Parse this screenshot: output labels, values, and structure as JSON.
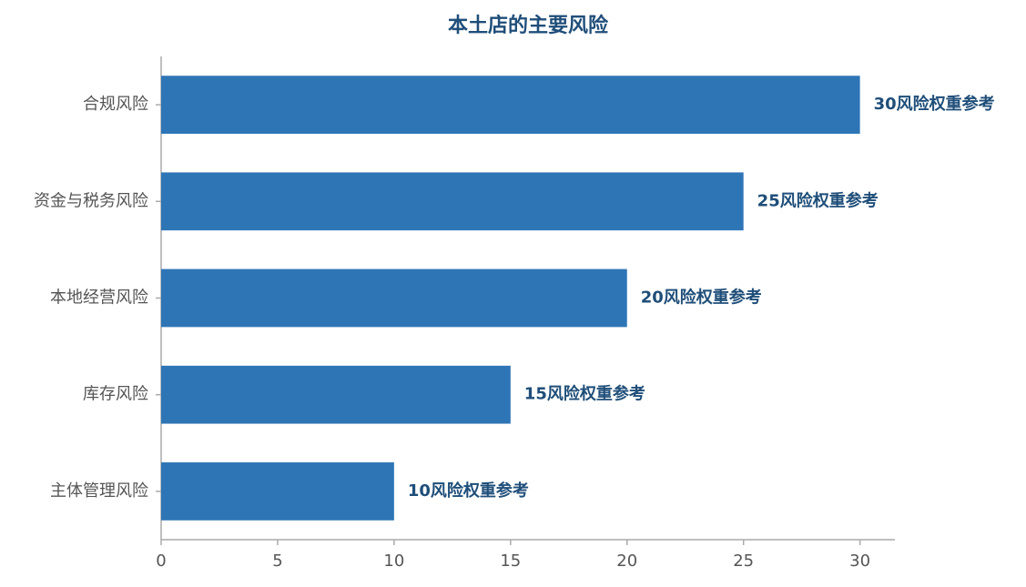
{
  "chart_data": {
    "type": "hbar",
    "title": "本土店的主要风险",
    "categories": [
      "合规风险",
      "资金与税务风险",
      "本地经营风险",
      "库存风险",
      "主体管理风险"
    ],
    "values": [
      30,
      25,
      20,
      15,
      10
    ],
    "value_labels": [
      "30风险权重参考",
      "25风险权重参考",
      "20风险权重参考",
      "15风险权重参考",
      "10风险权重参考"
    ],
    "color": "#2e75b6",
    "xlim": [
      0,
      31.5
    ],
    "xticks": [
      0,
      5,
      10,
      15,
      20,
      25,
      30
    ],
    "grid": false
  }
}
